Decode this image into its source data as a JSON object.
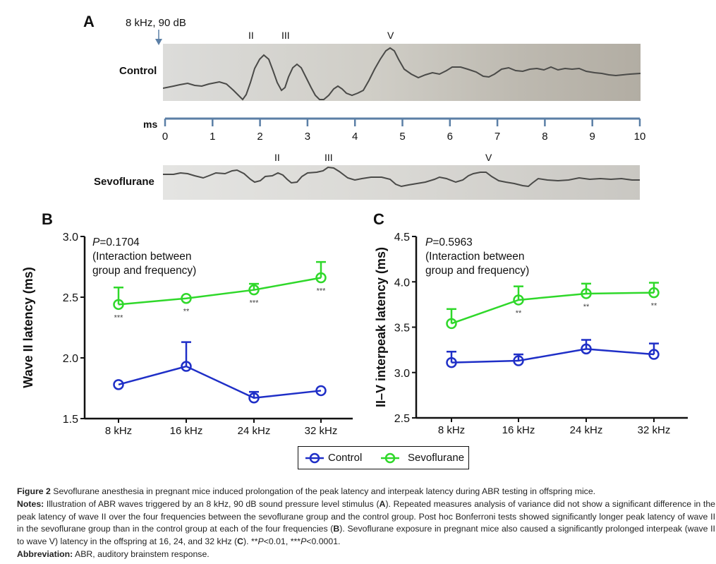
{
  "panel_a": {
    "letter": "A",
    "stimulus_label": "8 kHz, 90 dB",
    "control_label": "Control",
    "sevo_label": "Sevoflurane",
    "control_wave_labels": [
      "II",
      "III",
      "V"
    ],
    "sevo_wave_labels": [
      "II",
      "III",
      "V"
    ],
    "ms_axis": {
      "label": "ms",
      "ticks": [
        "0",
        "1",
        "2",
        "3",
        "4",
        "5",
        "6",
        "7",
        "8",
        "9",
        "10"
      ]
    },
    "axis_color": "#5b7fa6"
  },
  "legend": {
    "items": [
      {
        "name": "Control",
        "color": "#1f2fc7"
      },
      {
        "name": "Sevoflurane",
        "color": "#2fd82a"
      }
    ]
  },
  "chart_data": [
    {
      "panel": "B",
      "type": "line",
      "title": "",
      "annotation_p": "P",
      "annotation_value": "=0.1704",
      "annotation_line2": "(Interaction between",
      "annotation_line3": "group and frequency)",
      "xlabel": "",
      "ylabel": "Wave II latency (ms)",
      "categories": [
        "8 kHz",
        "16 kHz",
        "24 kHz",
        "32 kHz"
      ],
      "ylim": [
        1.5,
        3.0
      ],
      "yticks": [
        "1.5",
        "2.0",
        "2.5",
        "3.0"
      ],
      "yticks_values": [
        1.5,
        2.0,
        2.5,
        3.0
      ],
      "series": [
        {
          "name": "Control",
          "color": "#1f2fc7",
          "values": [
            1.78,
            1.93,
            1.67,
            1.73
          ],
          "error_upper": [
            1.78,
            2.13,
            1.72,
            1.73
          ]
        },
        {
          "name": "Sevoflurane",
          "color": "#2fd82a",
          "values": [
            2.44,
            2.49,
            2.56,
            2.66
          ],
          "error_upper": [
            2.58,
            2.49,
            2.61,
            2.79
          ],
          "significance": [
            "***",
            "**",
            "***",
            "***"
          ]
        }
      ]
    },
    {
      "panel": "C",
      "type": "line",
      "title": "",
      "annotation_p": "P",
      "annotation_value": "=0.5963",
      "annotation_line2": "(Interaction between",
      "annotation_line3": "group and frequency)",
      "xlabel": "",
      "ylabel": "II–V interpeak latency (ms)",
      "categories": [
        "8 kHz",
        "16 kHz",
        "24 kHz",
        "32 kHz"
      ],
      "ylim": [
        2.5,
        4.5
      ],
      "yticks": [
        "2.5",
        "3.0",
        "3.5",
        "4.0",
        "4.5"
      ],
      "yticks_values": [
        2.5,
        3.0,
        3.5,
        4.0,
        4.5
      ],
      "series": [
        {
          "name": "Control",
          "color": "#1f2fc7",
          "values": [
            3.11,
            3.13,
            3.26,
            3.2
          ],
          "error_upper": [
            3.23,
            3.2,
            3.36,
            3.32
          ]
        },
        {
          "name": "Sevoflurane",
          "color": "#2fd82a",
          "values": [
            3.54,
            3.8,
            3.87,
            3.88
          ],
          "error_upper": [
            3.7,
            3.95,
            3.98,
            3.99
          ],
          "significance": [
            "",
            "**",
            "**",
            "**"
          ]
        }
      ]
    }
  ],
  "caption": {
    "figure_label": "Figure 2",
    "figure_text": " Sevoflurane anesthesia in pregnant mice induced prolongation of the peak latency and interpeak latency during ABR testing in offspring mice.",
    "notes_label": "Notes:",
    "notes_text_1": " Illustration of ABR waves triggered by an 8 kHz, 90 dB sound pressure level stimulus (",
    "notes_ref_a": "A",
    "notes_text_2": "). Repeated measures analysis of variance did not show a significant difference in the peak latency of wave II over the four frequencies between the sevoflurane group and the control group. Post hoc Bonferroni tests showed significantly longer peak latency of wave II in the sevoflurane group than in the control group at each of the four frequencies (",
    "notes_ref_b": "B",
    "notes_text_3": "). Sevoflurane exposure in pregnant mice also caused a significantly prolonged interpeak (wave II to wave V) latency in the offspring at 16, 24, and 32 kHz (",
    "notes_ref_c": "C",
    "notes_text_4": "). **",
    "notes_p1": "P",
    "notes_text_5": "<0.01, ***",
    "notes_p2": "P",
    "notes_text_6": "<0.0001.",
    "abbrev_label": "Abbreviation:",
    "abbrev_text": " ABR, auditory brainstem response."
  }
}
